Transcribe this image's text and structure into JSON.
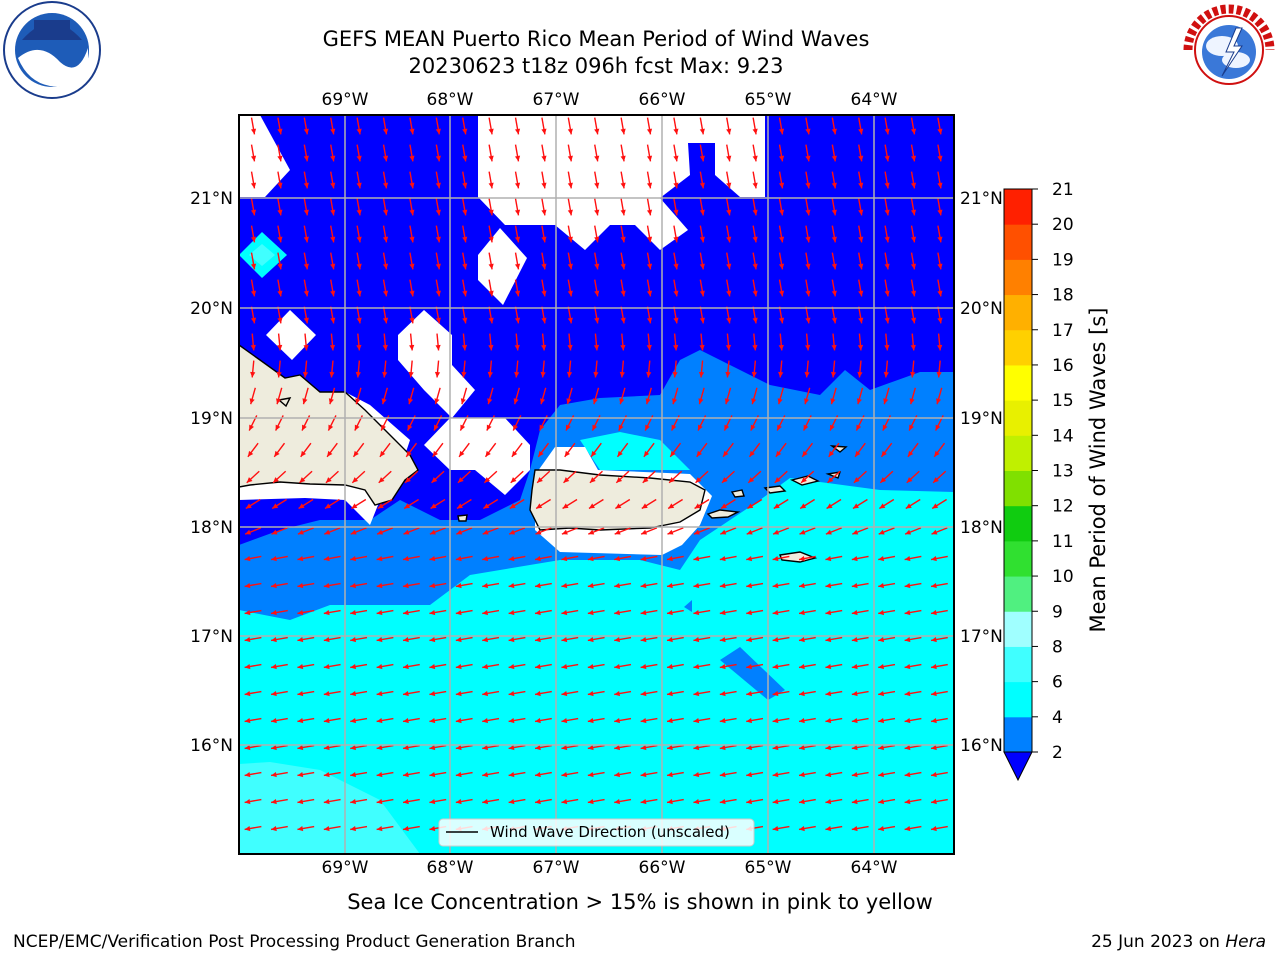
{
  "title_line1": "GEFS MEAN Puerto Rico Mean Period of Wind Waves",
  "title_line2": "20230623 t18z 096h fcst   Max: 9.23",
  "lon_labels": [
    "69°W",
    "68°W",
    "67°W",
    "66°W",
    "65°W",
    "64°W"
  ],
  "lat_labels": [
    "21°N",
    "20°N",
    "19°N",
    "18°N",
    "17°N",
    "16°N"
  ],
  "legend_label": "Wind Wave Direction (unscaled)",
  "colorbar": {
    "label": "Mean Period of Wind Waves [s]",
    "ticks": [
      "2",
      "4",
      "6",
      "8",
      "9",
      "10",
      "11",
      "12",
      "13",
      "14",
      "15",
      "16",
      "17",
      "18",
      "19",
      "20",
      "21"
    ],
    "colors": [
      "#0000ff",
      "#0080ff",
      "#00ffff",
      "#40ffff",
      "#a0ffff",
      "#50f080",
      "#30e030",
      "#10cc10",
      "#80e000",
      "#c0f000",
      "#e8f000",
      "#ffff00",
      "#ffd000",
      "#ffb000",
      "#ff8000",
      "#ff5000",
      "#ff2000",
      "#ff0000"
    ]
  },
  "footer_note": "Sea Ice Concentration > 15% is shown in pink to yellow",
  "footer_left": "NCEP/EMC/Verification Post Processing Product Generation Branch",
  "footer_right_date": "25 Jun 2023 on ",
  "footer_right_machine": "Hera",
  "logos": {
    "left": "noaa-logo",
    "right": "nws-logo"
  }
}
